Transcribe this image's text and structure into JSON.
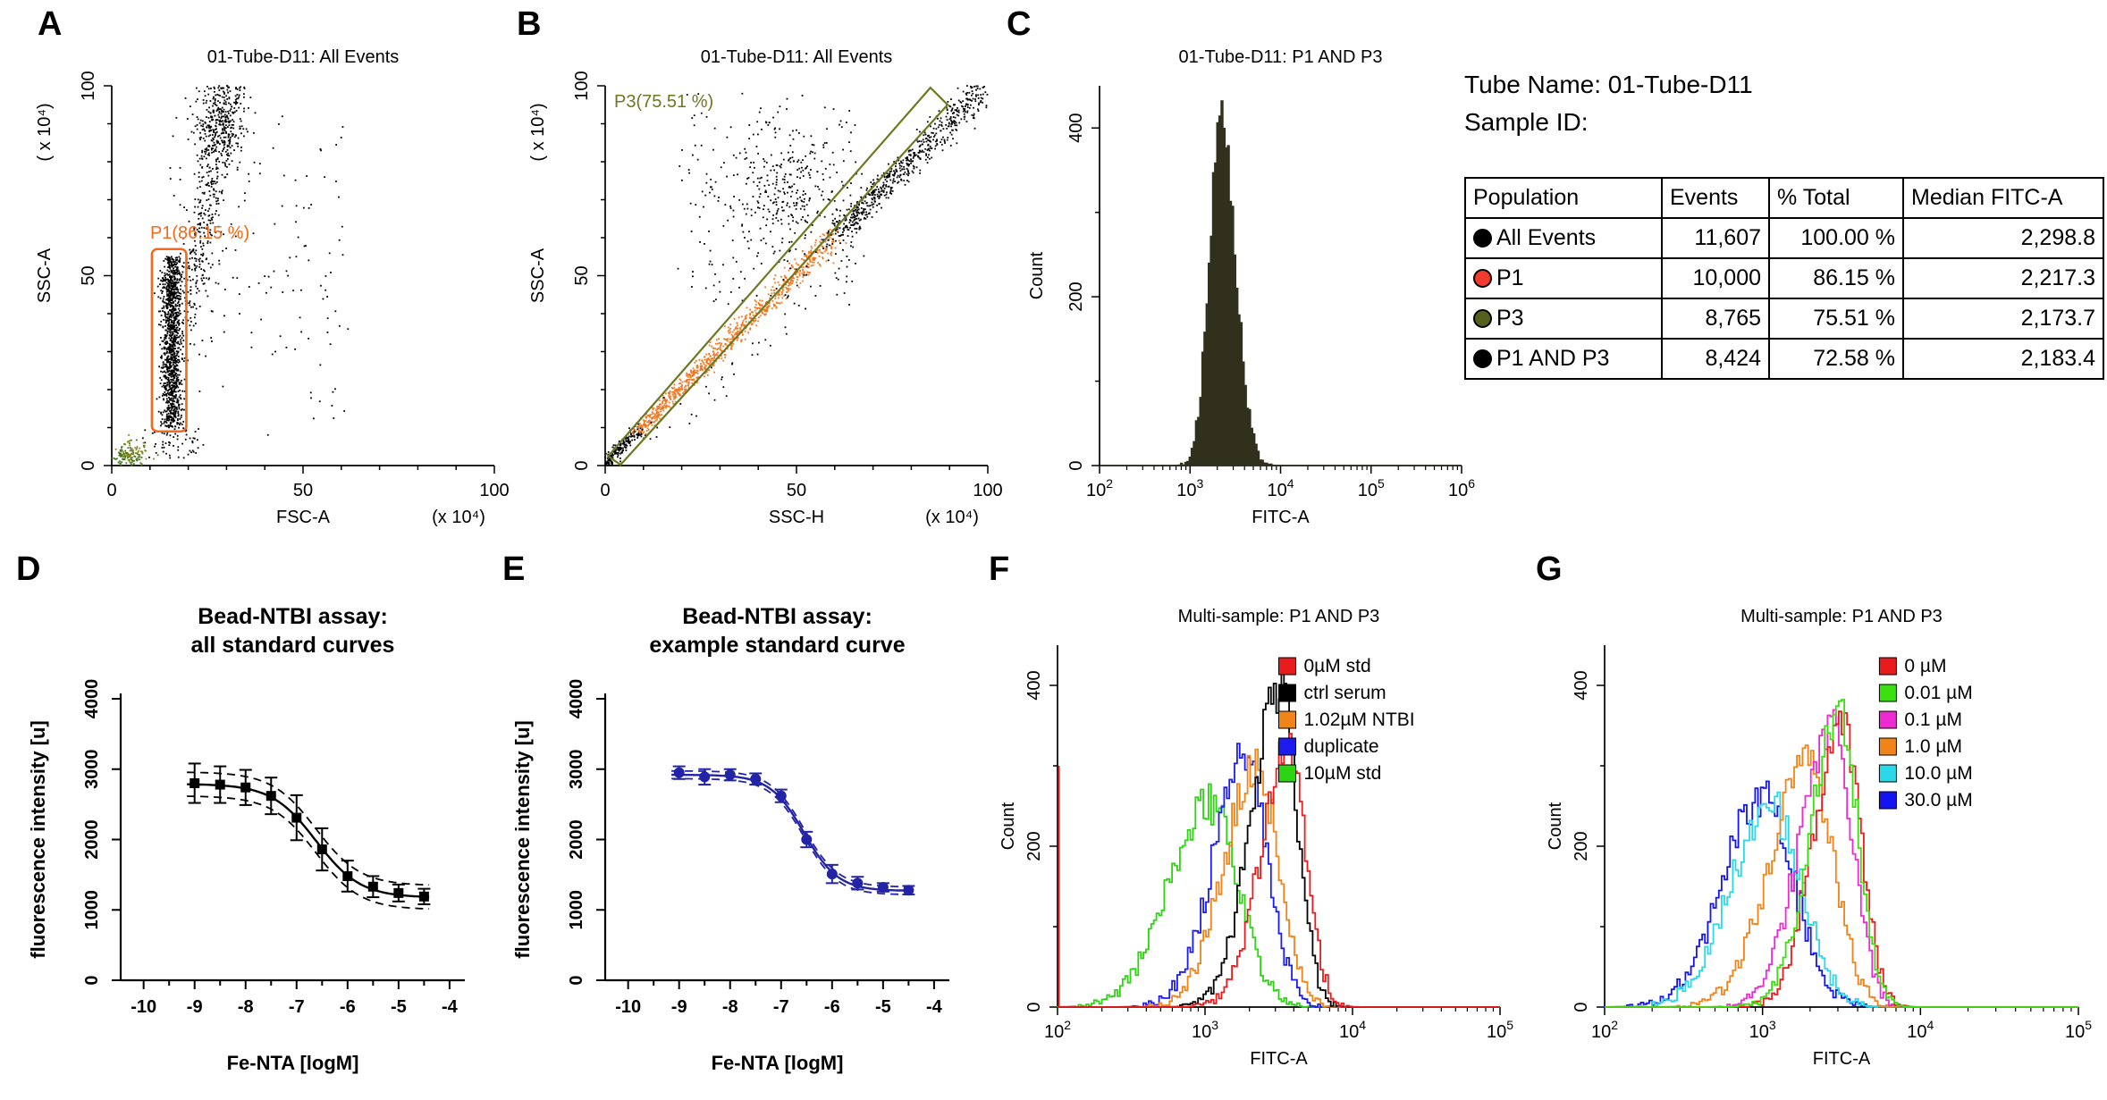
{
  "panel_letters": [
    "A",
    "B",
    "C",
    "D",
    "E",
    "F",
    "G"
  ],
  "info_block": {
    "tube_name_label": "Tube Name: 01-Tube-D11",
    "sample_id_label": "Sample ID:"
  },
  "results_table": {
    "columns": [
      "Population",
      "Events",
      "% Total",
      "Median FITC-A"
    ],
    "rows": [
      {
        "population": "All Events",
        "dot_color": "#000000",
        "events": "11,607",
        "pct_total": "100.00 %",
        "median_fitc_a": "2,298.8"
      },
      {
        "population": "P1",
        "dot_color": "#f23b2f",
        "events": "10,000",
        "pct_total": "86.15 %",
        "median_fitc_a": "2,217.3"
      },
      {
        "population": "P3",
        "dot_color": "#55601c",
        "events": "8,765",
        "pct_total": "75.51 %",
        "median_fitc_a": "2,173.7"
      },
      {
        "population": "P1 AND P3",
        "dot_color": "#000000",
        "events": "8,424",
        "pct_total": "72.58 %",
        "median_fitc_a": "2,183.4"
      }
    ]
  },
  "chart_data": [
    {
      "panel": "A",
      "type": "scatter",
      "title": "01-Tube-D11: All Events",
      "xlabel": "FSC-A",
      "x_unit": "(x 10⁴)",
      "ylabel": "SSC-A",
      "y_unit": "( x 10⁴)",
      "xlim": [
        0,
        100
      ],
      "ylim": [
        0,
        100
      ],
      "xticks": [
        0,
        50,
        100
      ],
      "yticks": [
        0,
        50,
        100
      ],
      "gate": {
        "shape": "rect",
        "label": "P1(86.15 %)",
        "color": "#f26a1b",
        "x": [
          10.5,
          19.5
        ],
        "y": [
          9,
          57
        ]
      },
      "clusters": [
        {
          "name": "p1-lymphocyte-band",
          "kind": "vband",
          "cx": 15.6,
          "sx": 1.3,
          "y0": 10,
          "y1": 55,
          "n": 1150,
          "color": "#000000"
        },
        {
          "name": "granulocyte-streak",
          "kind": "diag",
          "x0": 19,
          "y0": 36,
          "x1": 31,
          "y1": 100,
          "w": 2.4,
          "n": 430,
          "color": "#000000"
        },
        {
          "name": "high-ssc-cluster",
          "kind": "gauss",
          "cx": 27.5,
          "cy": 90,
          "sx": 3.4,
          "sy": 6,
          "n": 260,
          "color": "#000000"
        },
        {
          "name": "sparse-events",
          "kind": "uniform",
          "x0": 14,
          "x1": 62,
          "y0": 8,
          "y1": 92,
          "n": 150,
          "color": "#000000"
        },
        {
          "name": "low-debris",
          "kind": "uniform",
          "x0": 8,
          "x1": 24,
          "y0": 2,
          "y1": 10,
          "n": 60,
          "color": "#000000"
        },
        {
          "name": "debris-green",
          "kind": "gauss",
          "cx": 4,
          "cy": 2.6,
          "sx": 2.0,
          "sy": 1.6,
          "n": 95,
          "color": "#3f7416"
        },
        {
          "name": "debris-olive",
          "kind": "gauss",
          "cx": 5.5,
          "cy": 3.6,
          "sx": 2.2,
          "sy": 1.8,
          "n": 55,
          "color": "#8a8a20"
        }
      ]
    },
    {
      "panel": "B",
      "type": "scatter",
      "title": "01-Tube-D11: All Events",
      "xlabel": "SSC-H",
      "x_unit": "(x 10⁴)",
      "ylabel": "SSC-A",
      "y_unit": "( x 10⁴)",
      "xlim": [
        0,
        100
      ],
      "ylim": [
        0,
        100
      ],
      "xticks": [
        0,
        50,
        100
      ],
      "yticks": [
        0,
        50,
        100
      ],
      "gate": {
        "shape": "polygon",
        "label": "P3(75.51 %)",
        "color": "#6e7820",
        "points": [
          [
            0.8,
            2.5
          ],
          [
            85,
            99.5
          ],
          [
            89.5,
            95
          ],
          [
            4,
            0.2
          ]
        ]
      },
      "clusters": [
        {
          "name": "singlet-diagonal",
          "kind": "diag",
          "x0": 0,
          "y0": 0.5,
          "x1": 99,
          "y1": 99.5,
          "w": 0.8,
          "w2": 2.0,
          "n": 1750,
          "color": "#000000",
          "bias": 1.15,
          "color_stops": [
            {
              "t0": 0,
              "t1": 0.09,
              "color": "#000000"
            },
            {
              "t0": 0.09,
              "t1": 0.6,
              "color": "#f07820"
            },
            {
              "t0": 0.6,
              "t1": 1,
              "color": "#000000"
            }
          ]
        },
        {
          "name": "aggregate-cloud",
          "kind": "gauss",
          "cx": 46,
          "cy": 72,
          "sx": 8,
          "sy": 9,
          "n": 290,
          "color": "#000000"
        },
        {
          "name": "above-diagonal-sparse",
          "kind": "uniform",
          "x0": 18,
          "x1": 66,
          "y0": 42,
          "y1": 98,
          "n": 160,
          "color": "#000000"
        },
        {
          "name": "below-diagonal-sparse",
          "kind": "diag",
          "x0": 8,
          "y0": 3,
          "x1": 70,
          "y1": 60,
          "w": 2.5,
          "n": 45,
          "color": "#000000"
        }
      ]
    },
    {
      "panel": "C",
      "type": "histogram",
      "title": "01-Tube-D11: P1 AND P3",
      "xlabel": "FITC-A",
      "ylabel": "Count",
      "x_scale": "log",
      "x_log_range": [
        2,
        6
      ],
      "x_tick_labels": [
        "10²",
        "10³",
        "10⁴",
        "10⁵",
        "10⁶"
      ],
      "ylim": [
        0,
        450
      ],
      "yticks": [
        0,
        200,
        400
      ],
      "margin_left": 100,
      "series": [
        {
          "label": "P1 AND P3",
          "color": "#31301c",
          "fill": true,
          "peak_x": 2200,
          "peak_count": 410,
          "sigma_left": 0.13,
          "sigma_right": 0.16
        }
      ]
    },
    {
      "panel": "D",
      "type": "line",
      "title_lines": [
        "Bead-NTBI assay:",
        "all standard curves"
      ],
      "xlabel": "Fe-NTA [logM]",
      "ylabel": "fluorescence intensity [u]",
      "xlim": [
        -10,
        -4
      ],
      "ylim": [
        0,
        4000
      ],
      "xticks": [
        -10,
        -9,
        -8,
        -7,
        -6,
        -5,
        -4
      ],
      "yticks": [
        0,
        1000,
        2000,
        3000,
        4000
      ],
      "color": "#000000",
      "marker": "square",
      "x": [
        -9,
        -8.5,
        -8,
        -7.5,
        -7,
        -6.5,
        -6,
        -5.5,
        -5,
        -4.5
      ],
      "y": [
        2800,
        2780,
        2740,
        2620,
        2310,
        1860,
        1480,
        1330,
        1240,
        1190
      ],
      "err": [
        280,
        260,
        250,
        260,
        320,
        300,
        220,
        150,
        120,
        110
      ],
      "fit": {
        "top": 2790,
        "bottom": 1175,
        "logec50": -6.62,
        "hill": 1.0
      },
      "ci_offset": 170
    },
    {
      "panel": "E",
      "type": "line",
      "title_lines": [
        "Bead-NTBI assay:",
        "example standard curve"
      ],
      "xlabel": "Fe-NTA [logM]",
      "ylabel": "fluorescence intensity [u]",
      "xlim": [
        -10,
        -4
      ],
      "ylim": [
        0,
        4000
      ],
      "xticks": [
        -10,
        -9,
        -8,
        -7,
        -6,
        -5,
        -4
      ],
      "yticks": [
        0,
        1000,
        2000,
        3000,
        4000
      ],
      "color": "#2323a8",
      "marker": "circle",
      "x": [
        -9,
        -8.5,
        -8,
        -7.5,
        -7,
        -6.5,
        -6,
        -5.5,
        -5,
        -4.5
      ],
      "y": [
        2950,
        2890,
        2920,
        2860,
        2620,
        2000,
        1510,
        1380,
        1320,
        1280
      ],
      "err": [
        90,
        110,
        80,
        80,
        90,
        110,
        130,
        90,
        60,
        60
      ],
      "fit": {
        "top": 2920,
        "bottom": 1270,
        "logec50": -6.55,
        "hill": 1.3
      },
      "ci_offset": 55
    },
    {
      "panel": "F",
      "type": "histogram-overlay",
      "title": "Multi-sample: P1 AND P3",
      "xlabel": "FITC-A",
      "ylabel": "Count",
      "x_scale": "log",
      "x_log_range": [
        2,
        5
      ],
      "x_tick_labels": [
        "10²",
        "10³",
        "10⁴",
        "10⁵"
      ],
      "ylim": [
        0,
        450
      ],
      "yticks": [
        0,
        200,
        400
      ],
      "margin_left": 85,
      "legend_x": 0.5,
      "legend": [
        {
          "label": "0µM std",
          "color": "#e81c1c"
        },
        {
          "label": "ctrl serum",
          "color": "#000000"
        },
        {
          "label": "1.02µM NTBI",
          "color": "#f08418"
        },
        {
          "label": "duplicate",
          "color": "#1c1cf0"
        },
        {
          "label": "10µM std",
          "color": "#2ed313"
        }
      ],
      "series": [
        {
          "label": "10µM std",
          "color": "#2ed313",
          "peak_x": 1050,
          "peak_count": 255,
          "sigma_left": 0.27,
          "sigma_right": 0.2
        },
        {
          "label": "duplicate",
          "color": "#1c1cf0",
          "peak_x": 1900,
          "peak_count": 310,
          "sigma_left": 0.22,
          "sigma_right": 0.15
        },
        {
          "label": "1.02µM NTBI",
          "color": "#f08418",
          "peak_x": 2250,
          "peak_count": 300,
          "sigma_left": 0.22,
          "sigma_right": 0.15
        },
        {
          "label": "ctrl serum",
          "color": "#000000",
          "peak_x": 3200,
          "peak_count": 400,
          "sigma_left": 0.19,
          "sigma_right": 0.12
        },
        {
          "label": "0µM std",
          "color": "#e81c1c",
          "peak_x": 3700,
          "peak_count": 315,
          "sigma_left": 0.19,
          "sigma_right": 0.12,
          "edge_spike": 300
        }
      ]
    },
    {
      "panel": "G",
      "type": "histogram-overlay",
      "title": "Multi-sample: P1 AND P3",
      "xlabel": "FITC-A",
      "ylabel": "Count",
      "x_scale": "log",
      "x_log_range": [
        2,
        5
      ],
      "x_tick_labels": [
        "10²",
        "10³",
        "10⁴",
        "10⁵"
      ],
      "ylim": [
        0,
        450
      ],
      "yticks": [
        0,
        200,
        400
      ],
      "margin_left": 85,
      "legend_x": 0.58,
      "legend": [
        {
          "label": "0 µM",
          "color": "#e81c1c"
        },
        {
          "label": "0.01 µM",
          "color": "#3ae00e"
        },
        {
          "label": "0.1 µM",
          "color": "#ee2bd2"
        },
        {
          "label": "1.0 µM",
          "color": "#f08418"
        },
        {
          "label": "10.0 µM",
          "color": "#2ad9e8"
        },
        {
          "label": "30.0 µM",
          "color": "#1414f0"
        }
      ],
      "series": [
        {
          "label": "30.0 µM",
          "color": "#1414f0",
          "peak_x": 1000,
          "peak_count": 260,
          "sigma_left": 0.25,
          "sigma_right": 0.2
        },
        {
          "label": "10.0 µM",
          "color": "#2ad9e8",
          "peak_x": 1120,
          "peak_count": 250,
          "sigma_left": 0.25,
          "sigma_right": 0.2
        },
        {
          "label": "1.0 µM",
          "color": "#f08418",
          "peak_x": 1950,
          "peak_count": 300,
          "sigma_left": 0.24,
          "sigma_right": 0.16
        },
        {
          "label": "0.1 µM",
          "color": "#ee2bd2",
          "peak_x": 2750,
          "peak_count": 350,
          "sigma_left": 0.2,
          "sigma_right": 0.13
        },
        {
          "label": "0 µM",
          "color": "#e81c1c",
          "peak_x": 3200,
          "peak_count": 360,
          "sigma_left": 0.18,
          "sigma_right": 0.12
        },
        {
          "label": "0.01 µM",
          "color": "#3ae00e",
          "peak_x": 3050,
          "peak_count": 375,
          "sigma_left": 0.18,
          "sigma_right": 0.12
        }
      ]
    }
  ]
}
